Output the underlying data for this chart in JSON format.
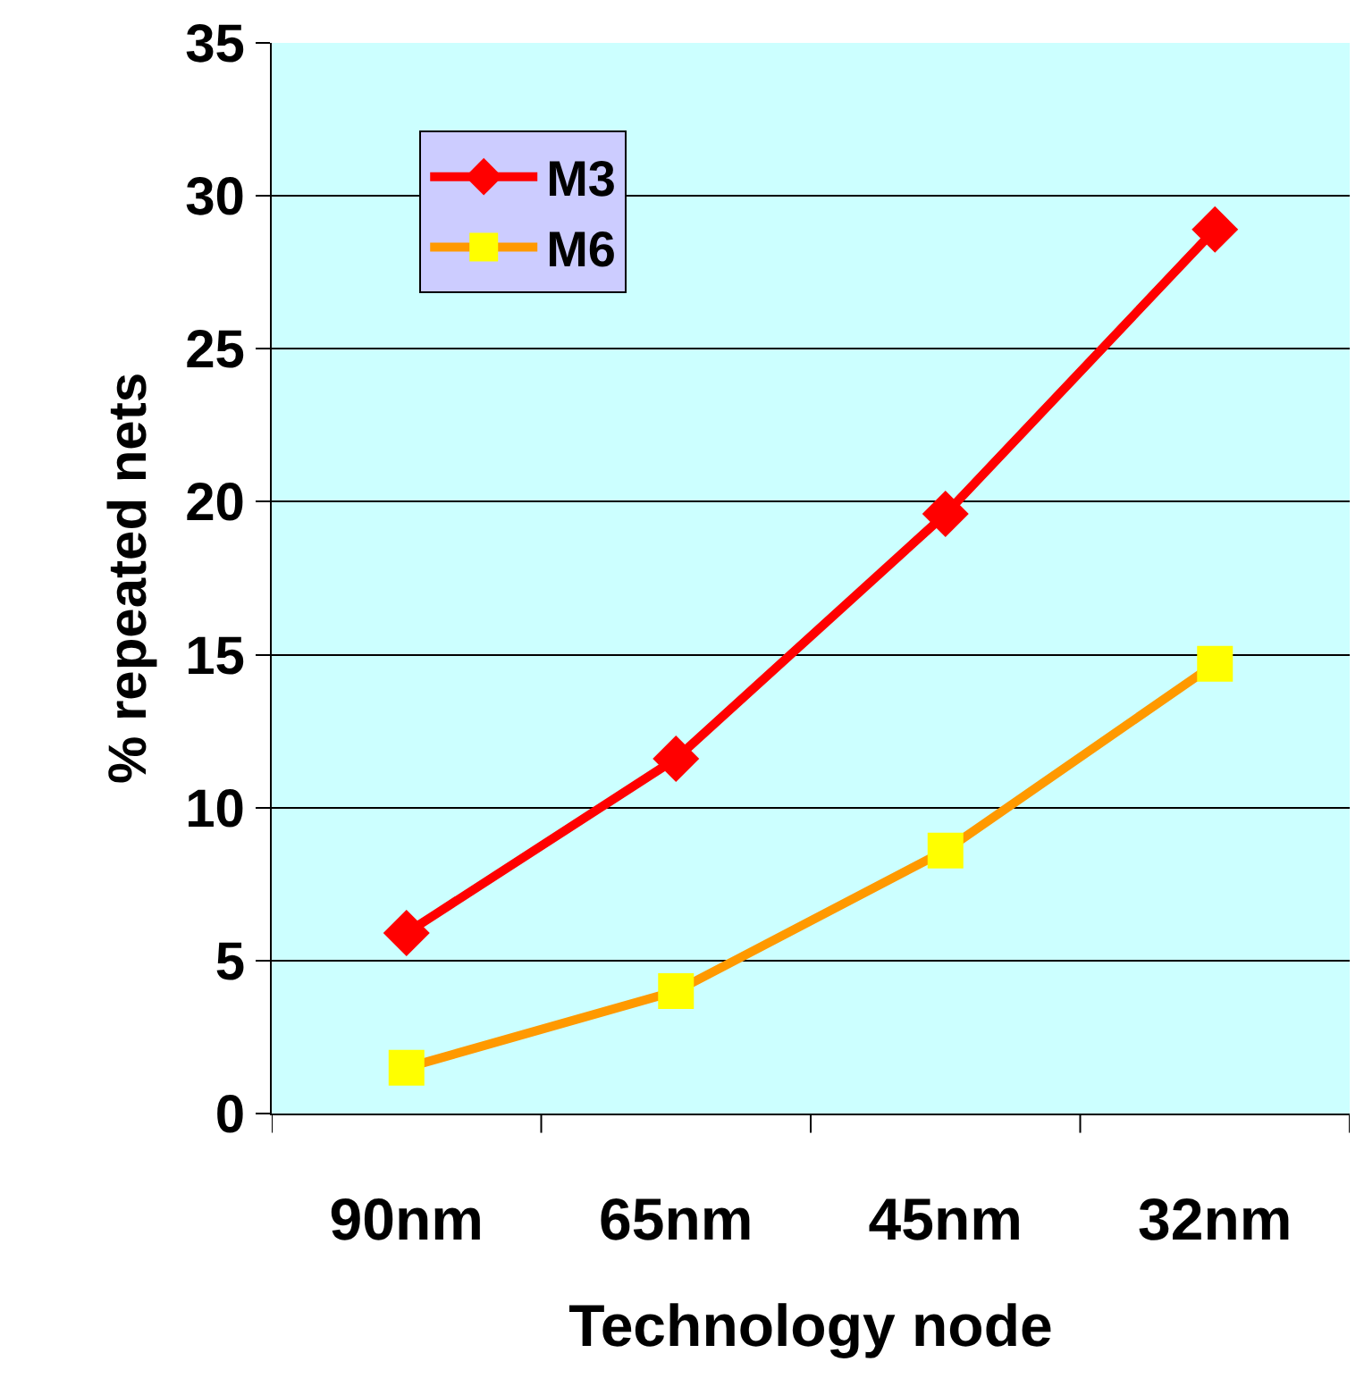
{
  "chart_data": {
    "type": "line",
    "xlabel": "Technology node",
    "ylabel": "% repeated nets",
    "categories": [
      "90nm",
      "65nm",
      "45nm",
      "32nm"
    ],
    "series": [
      {
        "name": "M3",
        "color": "#ff0000",
        "marker": "diamond",
        "values": [
          5.9,
          11.6,
          19.6,
          28.9
        ]
      },
      {
        "name": "M6",
        "color": "#ff9900",
        "colors": [
          "#ffff00",
          "#ffff00",
          "#ffff00",
          "#ffff00"
        ],
        "marker": "square",
        "values": [
          1.5,
          4.0,
          8.6,
          14.7
        ]
      }
    ],
    "ylim": [
      0,
      35
    ],
    "yticks": [
      0,
      5,
      10,
      15,
      20,
      25,
      30,
      35
    ],
    "grid": "y",
    "legend": "top left",
    "line_style": "solid"
  }
}
